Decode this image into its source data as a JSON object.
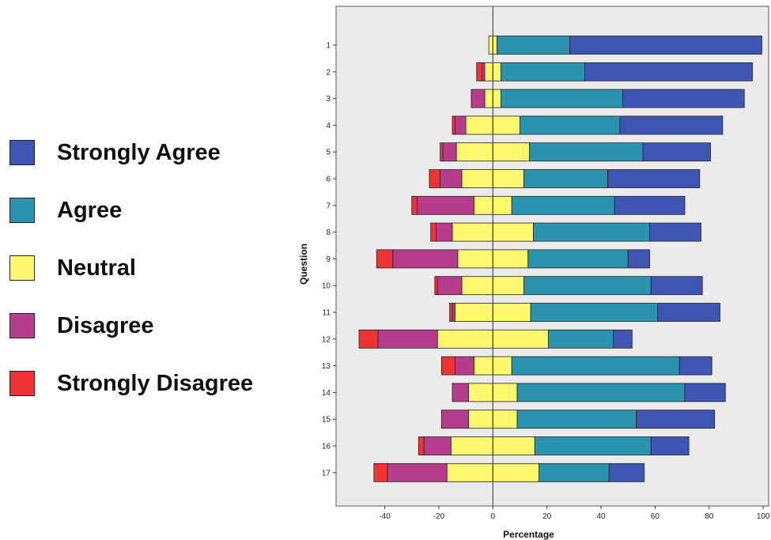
{
  "chart_data": {
    "type": "bar",
    "orientation": "horizontal-diverging",
    "xlabel": "Percentage",
    "ylabel": "Question",
    "xlim": [
      -58,
      102
    ],
    "x_ticks": [
      -40,
      -20,
      0,
      20,
      40,
      60,
      80,
      100
    ],
    "grid": false,
    "legend_position": "left",
    "categories": [
      "1",
      "2",
      "3",
      "4",
      "5",
      "6",
      "7",
      "8",
      "9",
      "10",
      "11",
      "12",
      "13",
      "14",
      "15",
      "16",
      "17"
    ],
    "series": [
      {
        "name": "Strongly Agree",
        "color": "#3e55b4",
        "values": [
          71,
          62,
          45,
          38,
          25,
          34,
          26,
          19,
          8,
          19,
          23,
          7,
          12,
          15,
          29,
          14,
          13
        ]
      },
      {
        "name": "Agree",
        "color": "#2a93b0",
        "values": [
          27,
          31,
          45,
          37,
          42,
          31,
          38,
          43,
          37,
          47,
          47,
          24,
          62,
          62,
          44,
          43,
          26
        ]
      },
      {
        "name": "Neutral",
        "color": "#fdf86e",
        "values": [
          3,
          6,
          6,
          20,
          27,
          23,
          14,
          30,
          26,
          23,
          28,
          41,
          14,
          18,
          18,
          31,
          34
        ]
      },
      {
        "name": "Disagree",
        "color": "#b83c8c",
        "values": [
          0,
          1,
          5,
          4,
          5,
          8,
          21,
          6,
          24,
          9,
          1,
          22,
          7,
          6,
          10,
          10,
          22
        ]
      },
      {
        "name": "Strongly Disagree",
        "color": "#ee3335",
        "values": [
          0,
          2,
          0,
          1,
          1,
          4,
          2,
          2,
          6,
          1,
          1,
          7,
          5,
          0,
          0,
          2,
          5
        ]
      }
    ]
  },
  "legend": {
    "items": [
      {
        "label": "Strongly Agree",
        "color": "#3e55b4"
      },
      {
        "label": "Agree",
        "color": "#2a93b0"
      },
      {
        "label": "Neutral",
        "color": "#fdf86e"
      },
      {
        "label": "Disagree",
        "color": "#b83c8c"
      },
      {
        "label": "Strongly Disagree",
        "color": "#ee3335"
      }
    ]
  },
  "colors": {
    "plot_background": "#ebebeb",
    "zero_line": "#333333",
    "bar_outline": "#222222"
  }
}
